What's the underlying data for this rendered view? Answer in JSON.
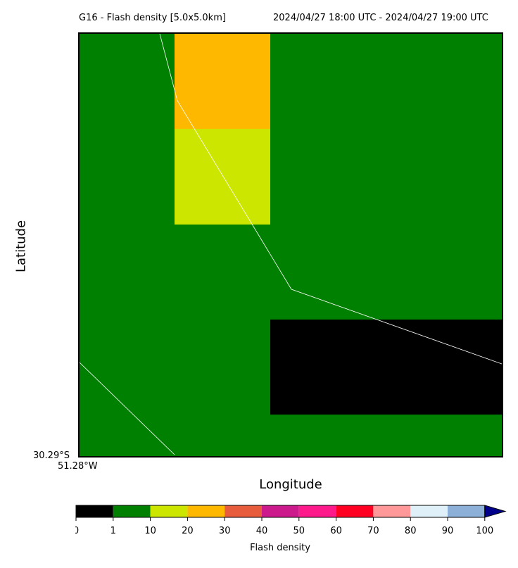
{
  "title_left": "G16 - Flash density [5.0x5.0km]",
  "title_right": "2024/04/27 18:00 UTC - 2024/04/27 19:00 UTC",
  "ylabel": "Latitude",
  "xlabel": "Longitude",
  "corner_lat": "30.29°S",
  "corner_lon": "51.28°W",
  "colorbar": {
    "label": "Flash density",
    "ticks": [
      "0",
      "1",
      "10",
      "20",
      "30",
      "40",
      "50",
      "60",
      "70",
      "80",
      "90",
      "100"
    ],
    "colors": [
      "#000000",
      "#008000",
      "#cce600",
      "#ffb800",
      "#e65c3c",
      "#cc1a8c",
      "#ff1a8c",
      "#ff0022",
      "#ff9999",
      "#e0f0f8",
      "#8cb0d8"
    ],
    "extend_color": "#00008b"
  },
  "map": {
    "background_color": "#008000",
    "grid": {
      "cols": 4.44,
      "rows": 4.44
    },
    "cells": [
      {
        "row": 0,
        "col": 1,
        "color": "#ffb800",
        "range": "20-30"
      },
      {
        "row": 1,
        "col": 1,
        "color": "#cce600",
        "range": "10-20"
      },
      {
        "row": 3,
        "col": 2,
        "color": "#000000",
        "range": "0-1"
      },
      {
        "row": 3,
        "col": 3,
        "color": "#000000",
        "range": "0-1"
      }
    ],
    "boundary_color": "#ffffff"
  }
}
